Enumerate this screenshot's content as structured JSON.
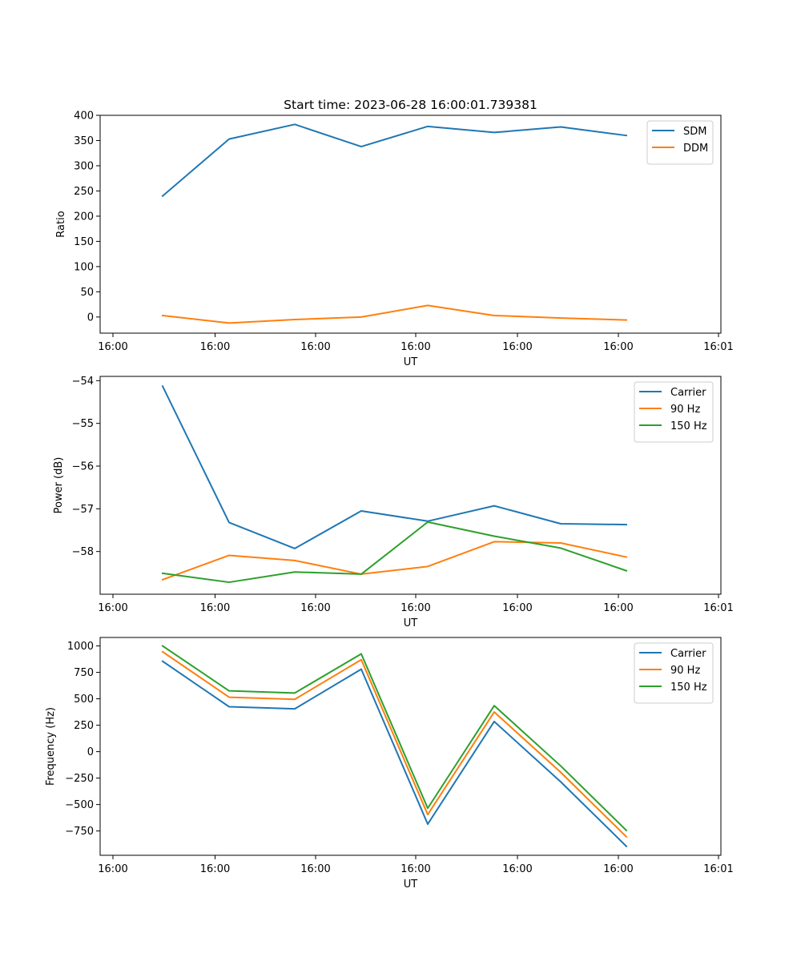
{
  "figure": {
    "title": "Start time: 2023-06-28 16:00:01.739381"
  },
  "chart_data": [
    {
      "type": "line",
      "title": "Start time: 2023-06-28 16:00:01.739381",
      "xlabel": "UT",
      "ylabel": "Ratio",
      "x_tick_labels": [
        "16:00",
        "16:00",
        "16:00",
        "16:00",
        "16:00",
        "16:00",
        "16:00"
      ],
      "x_end_tick_label": "16:01",
      "y_ticks": [
        0,
        50,
        100,
        150,
        200,
        250,
        300,
        350,
        400
      ],
      "ylim": [
        -32,
        400
      ],
      "legend_position": "upper right",
      "grid": false,
      "series": [
        {
          "name": "SDM",
          "color": "#1f77b4",
          "values": [
            240,
            353,
            382,
            338,
            378,
            366,
            377,
            360
          ]
        },
        {
          "name": "DDM",
          "color": "#ff7f0e",
          "values": [
            3,
            -12,
            -5,
            0,
            23,
            3,
            -2,
            -6
          ]
        }
      ]
    },
    {
      "type": "line",
      "title": "",
      "xlabel": "UT",
      "ylabel": "Power (dB)",
      "x_tick_labels": [
        "16:00",
        "16:00",
        "16:00",
        "16:00",
        "16:00",
        "16:00",
        "16:00"
      ],
      "x_end_tick_label": "16:01",
      "y_ticks": [
        -54,
        -55,
        -56,
        -57,
        -58
      ],
      "ylim": [
        -59.0,
        -53.9
      ],
      "legend_position": "upper right",
      "grid": false,
      "series": [
        {
          "name": "Carrier",
          "color": "#1f77b4",
          "values": [
            -54.13,
            -57.32,
            -57.93,
            -57.05,
            -57.29,
            -56.93,
            -57.35,
            -57.37
          ]
        },
        {
          "name": "90 Hz",
          "color": "#ff7f0e",
          "values": [
            -58.66,
            -58.09,
            -58.21,
            -58.53,
            -58.35,
            -57.77,
            -57.8,
            -58.13
          ]
        },
        {
          "name": "150 Hz",
          "color": "#2ca02c",
          "values": [
            -58.51,
            -58.72,
            -58.48,
            -58.53,
            -57.31,
            -57.64,
            -57.92,
            -58.45
          ]
        }
      ]
    },
    {
      "type": "line",
      "title": "",
      "xlabel": "UT",
      "ylabel": "Frequency (Hz)",
      "x_tick_labels": [
        "16:00",
        "16:00",
        "16:00",
        "16:00",
        "16:00",
        "16:00",
        "16:00"
      ],
      "x_end_tick_label": "16:01",
      "y_ticks": [
        1000,
        750,
        500,
        250,
        0,
        -250,
        -500,
        -750
      ],
      "ylim": [
        -980,
        1080
      ],
      "legend_position": "upper right",
      "grid": false,
      "series": [
        {
          "name": "Carrier",
          "color": "#1f77b4",
          "values": [
            855,
            425,
            405,
            780,
            -685,
            285,
            -285,
            -895
          ]
        },
        {
          "name": "90 Hz",
          "color": "#ff7f0e",
          "values": [
            945,
            515,
            495,
            870,
            -595,
            375,
            -195,
            -805
          ]
        },
        {
          "name": "150 Hz",
          "color": "#2ca02c",
          "values": [
            1000,
            575,
            555,
            925,
            -535,
            435,
            -135,
            -745
          ]
        }
      ]
    }
  ]
}
